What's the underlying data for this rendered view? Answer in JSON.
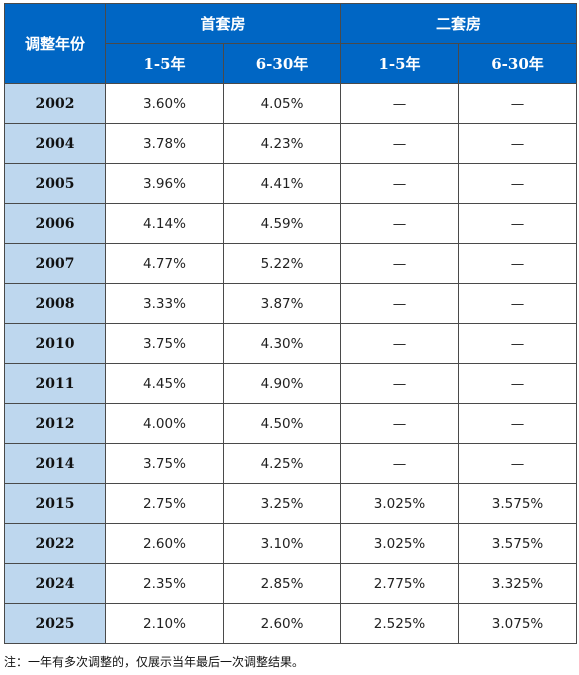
{
  "header": {
    "year_label": "调整年份",
    "first_home": "首套房",
    "second_home": "二套房",
    "sub": [
      "1-5年",
      "6-30年",
      "1-5年",
      "6-30年"
    ]
  },
  "rows": [
    [
      "2002",
      "3.60%",
      "4.05%",
      "—",
      "—"
    ],
    [
      "2004",
      "3.78%",
      "4.23%",
      "—",
      "—"
    ],
    [
      "2005",
      "3.96%",
      "4.41%",
      "—",
      "—"
    ],
    [
      "2006",
      "4.14%",
      "4.59%",
      "—",
      "—"
    ],
    [
      "2007",
      "4.77%",
      "5.22%",
      "—",
      "—"
    ],
    [
      "2008",
      "3.33%",
      "3.87%",
      "—",
      "—"
    ],
    [
      "2010",
      "3.75%",
      "4.30%",
      "—",
      "—"
    ],
    [
      "2011",
      "4.45%",
      "4.90%",
      "—",
      "—"
    ],
    [
      "2012",
      "4.00%",
      "4.50%",
      "—",
      "—"
    ],
    [
      "2014",
      "3.75%",
      "4.25%",
      "—",
      "—"
    ],
    [
      "2015",
      "2.75%",
      "3.25%",
      "3.025%",
      "3.575%"
    ],
    [
      "2022",
      "2.60%",
      "3.10%",
      "3.025%",
      "3.575%"
    ],
    [
      "2024",
      "2.35%",
      "2.85%",
      "2.775%",
      "3.325%"
    ],
    [
      "2025",
      "2.10%",
      "2.60%",
      "2.525%",
      "3.075%"
    ]
  ],
  "note": "注：一年有多次调整的，仅展示当年最后一次调整结果。",
  "colors": {
    "header_bg": "#0066c4",
    "year_bg": "#bed7ee",
    "border": "#4a4a4a"
  }
}
